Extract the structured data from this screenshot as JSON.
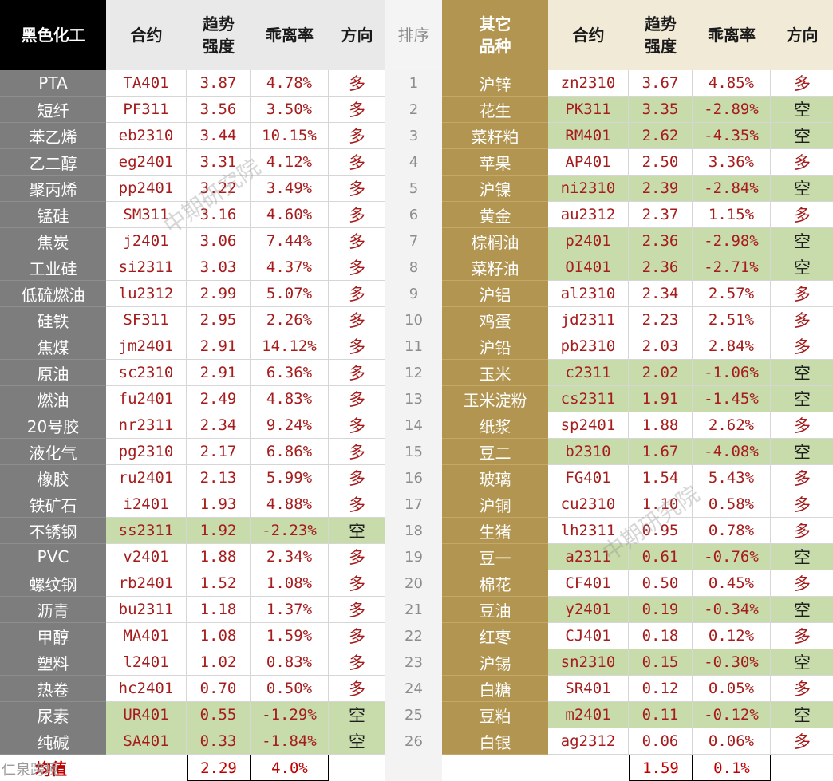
{
  "left": {
    "headers": [
      "黑色化工",
      "合约",
      "趋势强度",
      "乖离率",
      "方向"
    ],
    "rows": [
      {
        "name": "PTA",
        "code": "TA401",
        "trend": "3.87",
        "dev": "4.78%",
        "dir": "多"
      },
      {
        "name": "短纤",
        "code": "PF311",
        "trend": "3.56",
        "dev": "3.50%",
        "dir": "多"
      },
      {
        "name": "苯乙烯",
        "code": "eb2310",
        "trend": "3.44",
        "dev": "10.15%",
        "dir": "多"
      },
      {
        "name": "乙二醇",
        "code": "eg2401",
        "trend": "3.31",
        "dev": "4.12%",
        "dir": "多"
      },
      {
        "name": "聚丙烯",
        "code": "pp2401",
        "trend": "3.22",
        "dev": "3.49%",
        "dir": "多"
      },
      {
        "name": "锰硅",
        "code": "SM311",
        "trend": "3.16",
        "dev": "4.60%",
        "dir": "多"
      },
      {
        "name": "焦炭",
        "code": "j2401",
        "trend": "3.06",
        "dev": "7.44%",
        "dir": "多"
      },
      {
        "name": "工业硅",
        "code": "si2311",
        "trend": "3.03",
        "dev": "4.37%",
        "dir": "多"
      },
      {
        "name": "低硫燃油",
        "code": "lu2312",
        "trend": "2.99",
        "dev": "5.07%",
        "dir": "多"
      },
      {
        "name": "硅铁",
        "code": "SF311",
        "trend": "2.95",
        "dev": "2.26%",
        "dir": "多"
      },
      {
        "name": "焦煤",
        "code": "jm2401",
        "trend": "2.91",
        "dev": "14.12%",
        "dir": "多"
      },
      {
        "name": "原油",
        "code": "sc2310",
        "trend": "2.91",
        "dev": "6.36%",
        "dir": "多"
      },
      {
        "name": "燃油",
        "code": "fu2401",
        "trend": "2.49",
        "dev": "4.83%",
        "dir": "多"
      },
      {
        "name": "20号胶",
        "code": "nr2311",
        "trend": "2.34",
        "dev": "9.24%",
        "dir": "多"
      },
      {
        "name": "液化气",
        "code": "pg2310",
        "trend": "2.17",
        "dev": "6.86%",
        "dir": "多"
      },
      {
        "name": "橡胶",
        "code": "ru2401",
        "trend": "2.13",
        "dev": "5.99%",
        "dir": "多"
      },
      {
        "name": "铁矿石",
        "code": "i2401",
        "trend": "1.93",
        "dev": "4.88%",
        "dir": "多"
      },
      {
        "name": "不锈钢",
        "code": "ss2311",
        "trend": "1.92",
        "dev": "-2.23%",
        "dir": "空"
      },
      {
        "name": "PVC",
        "code": "v2401",
        "trend": "1.88",
        "dev": "2.34%",
        "dir": "多"
      },
      {
        "name": "螺纹钢",
        "code": "rb2401",
        "trend": "1.52",
        "dev": "1.08%",
        "dir": "多"
      },
      {
        "name": "沥青",
        "code": "bu2311",
        "trend": "1.18",
        "dev": "1.37%",
        "dir": "多"
      },
      {
        "name": "甲醇",
        "code": "MA401",
        "trend": "1.08",
        "dev": "1.59%",
        "dir": "多"
      },
      {
        "name": "塑料",
        "code": "l2401",
        "trend": "1.02",
        "dev": "0.83%",
        "dir": "多"
      },
      {
        "name": "热卷",
        "code": "hc2401",
        "trend": "0.70",
        "dev": "0.50%",
        "dir": "多"
      },
      {
        "name": "尿素",
        "code": "UR401",
        "trend": "0.55",
        "dev": "-1.29%",
        "dir": "空"
      },
      {
        "name": "纯碱",
        "code": "SA401",
        "trend": "0.33",
        "dev": "-1.84%",
        "dir": "空"
      }
    ],
    "footer": {
      "label": "均值",
      "trend": "2.29",
      "dev": "4.0%"
    }
  },
  "rank": {
    "header": "排序",
    "values": [
      "1",
      "2",
      "3",
      "4",
      "5",
      "6",
      "7",
      "8",
      "9",
      "10",
      "11",
      "12",
      "13",
      "14",
      "15",
      "16",
      "17",
      "18",
      "19",
      "20",
      "21",
      "22",
      "23",
      "24",
      "25",
      "26"
    ]
  },
  "right": {
    "headers": [
      "其它品种",
      "合约",
      "趋势强度",
      "乖离率",
      "方向"
    ],
    "rows": [
      {
        "name": "沪锌",
        "code": "zn2310",
        "trend": "3.67",
        "dev": "4.85%",
        "dir": "多"
      },
      {
        "name": "花生",
        "code": "PK311",
        "trend": "3.35",
        "dev": "-2.89%",
        "dir": "空"
      },
      {
        "name": "菜籽粕",
        "code": "RM401",
        "trend": "2.62",
        "dev": "-4.35%",
        "dir": "空"
      },
      {
        "name": "苹果",
        "code": "AP401",
        "trend": "2.50",
        "dev": "3.36%",
        "dir": "多"
      },
      {
        "name": "沪镍",
        "code": "ni2310",
        "trend": "2.39",
        "dev": "-2.84%",
        "dir": "空"
      },
      {
        "name": "黄金",
        "code": "au2312",
        "trend": "2.37",
        "dev": "1.15%",
        "dir": "多"
      },
      {
        "name": "棕榈油",
        "code": "p2401",
        "trend": "2.36",
        "dev": "-2.98%",
        "dir": "空"
      },
      {
        "name": "菜籽油",
        "code": "OI401",
        "trend": "2.36",
        "dev": "-2.71%",
        "dir": "空"
      },
      {
        "name": "沪铝",
        "code": "al2310",
        "trend": "2.34",
        "dev": "2.57%",
        "dir": "多"
      },
      {
        "name": "鸡蛋",
        "code": "jd2311",
        "trend": "2.23",
        "dev": "2.51%",
        "dir": "多"
      },
      {
        "name": "沪铅",
        "code": "pb2310",
        "trend": "2.03",
        "dev": "2.84%",
        "dir": "多"
      },
      {
        "name": "玉米",
        "code": "c2311",
        "trend": "2.02",
        "dev": "-1.06%",
        "dir": "空"
      },
      {
        "name": "玉米淀粉",
        "code": "cs2311",
        "trend": "1.91",
        "dev": "-1.45%",
        "dir": "空"
      },
      {
        "name": "纸浆",
        "code": "sp2401",
        "trend": "1.88",
        "dev": "2.62%",
        "dir": "多"
      },
      {
        "name": "豆二",
        "code": "b2310",
        "trend": "1.67",
        "dev": "-4.08%",
        "dir": "空"
      },
      {
        "name": "玻璃",
        "code": "FG401",
        "trend": "1.54",
        "dev": "5.43%",
        "dir": "多"
      },
      {
        "name": "沪铜",
        "code": "cu2310",
        "trend": "1.10",
        "dev": "0.58%",
        "dir": "多"
      },
      {
        "name": "生猪",
        "code": "lh2311",
        "trend": "0.95",
        "dev": "0.78%",
        "dir": "多"
      },
      {
        "name": "豆一",
        "code": "a2311",
        "trend": "0.61",
        "dev": "-0.76%",
        "dir": "空"
      },
      {
        "name": "棉花",
        "code": "CF401",
        "trend": "0.50",
        "dev": "0.45%",
        "dir": "多"
      },
      {
        "name": "豆油",
        "code": "y2401",
        "trend": "0.19",
        "dev": "-0.34%",
        "dir": "空"
      },
      {
        "name": "红枣",
        "code": "CJ401",
        "trend": "0.18",
        "dev": "0.12%",
        "dir": "多"
      },
      {
        "name": "沪锡",
        "code": "sn2310",
        "trend": "0.15",
        "dev": "-0.30%",
        "dir": "空"
      },
      {
        "name": "白糖",
        "code": "SR401",
        "trend": "0.12",
        "dev": "0.05%",
        "dir": "多"
      },
      {
        "name": "豆粕",
        "code": "m2401",
        "trend": "0.11",
        "dev": "-0.12%",
        "dir": "空"
      },
      {
        "name": "白银",
        "code": "ag2312",
        "trend": "0.06",
        "dev": "0.06%",
        "dir": "多"
      }
    ],
    "footer": {
      "trend": "1.59",
      "dev": "0.1%"
    }
  },
  "watermark": "中期研究院",
  "logo_text": "仁泉跨境",
  "colors": {
    "short_highlight": "#c7dcaa",
    "value_text": "#a61c1c",
    "left_accent": "#7d7d7d",
    "right_accent": "#b39552"
  }
}
